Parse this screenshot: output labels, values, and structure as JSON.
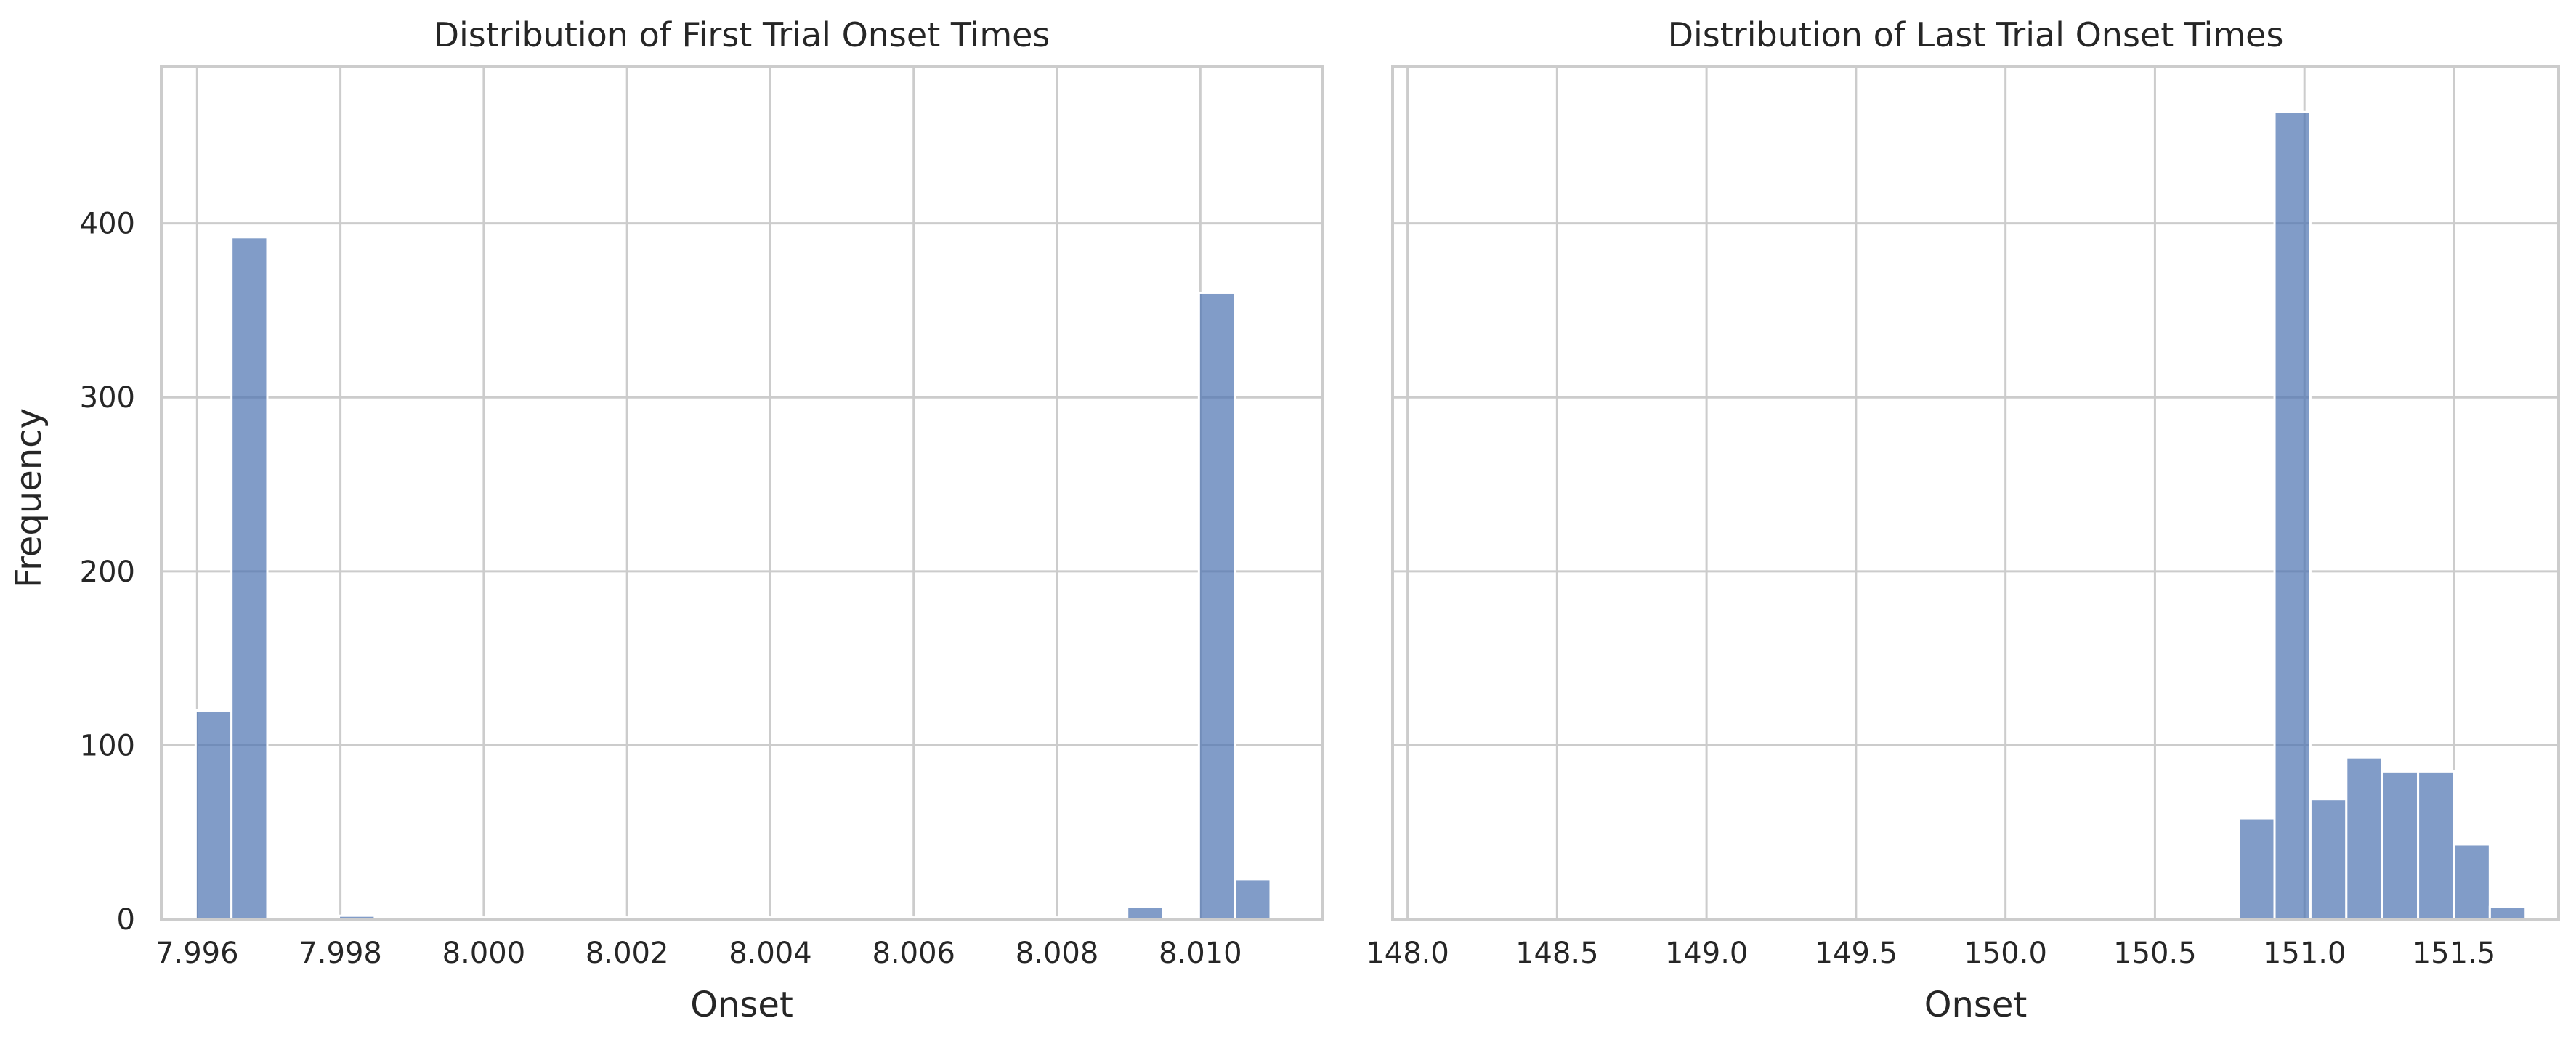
{
  "figure": {
    "ylabel": "Frequency"
  },
  "colors": {
    "bar": "#4c72b0",
    "grid": "#cccccc",
    "background": "#ffffff",
    "text": "#262626"
  },
  "chart_data": [
    {
      "type": "bar",
      "title": "Distribution of First Trial Onset Times",
      "xlabel": "Onset",
      "ylabel": "Frequency",
      "xlim": [
        7.9955,
        8.0117
      ],
      "ylim": [
        0,
        490
      ],
      "x_ticks": [
        7.996,
        7.998,
        8.0,
        8.002,
        8.004,
        8.006,
        8.008,
        8.01
      ],
      "x_tick_labels": [
        "7.996",
        "7.998",
        "8.000",
        "8.002",
        "8.004",
        "8.006",
        "8.008",
        "8.010"
      ],
      "y_ticks": [
        0,
        100,
        200,
        300,
        400
      ],
      "y_tick_labels": [
        "0",
        "100",
        "200",
        "300",
        "400"
      ],
      "grid": true,
      "bins": [
        {
          "x0": 7.99598,
          "x1": 7.99648,
          "value": 120
        },
        {
          "x0": 7.99648,
          "x1": 7.99698,
          "value": 392
        },
        {
          "x0": 7.99748,
          "x1": 7.99798,
          "value": 1
        },
        {
          "x0": 7.99798,
          "x1": 7.99848,
          "value": 2
        },
        {
          "x0": 7.99848,
          "x1": 7.99898,
          "value": 1
        },
        {
          "x0": 7.99898,
          "x1": 7.99948,
          "value": 1
        },
        {
          "x0": 7.99948,
          "x1": 7.99998,
          "value": 1
        },
        {
          "x0": 7.99998,
          "x1": 8.00048,
          "value": 1
        },
        {
          "x0": 8.00048,
          "x1": 8.00098,
          "value": 1
        },
        {
          "x0": 8.00098,
          "x1": 8.00148,
          "value": 1
        },
        {
          "x0": 8.00148,
          "x1": 8.00198,
          "value": 1
        },
        {
          "x0": 8.00198,
          "x1": 8.00248,
          "value": 1
        },
        {
          "x0": 8.00248,
          "x1": 8.00298,
          "value": 1
        },
        {
          "x0": 8.00298,
          "x1": 8.00348,
          "value": 1
        },
        {
          "x0": 8.00348,
          "x1": 8.00398,
          "value": 1
        },
        {
          "x0": 8.00398,
          "x1": 8.00448,
          "value": 1
        },
        {
          "x0": 8.00448,
          "x1": 8.00498,
          "value": 1
        },
        {
          "x0": 8.00498,
          "x1": 8.00548,
          "value": 1
        },
        {
          "x0": 8.00548,
          "x1": 8.00598,
          "value": 1
        },
        {
          "x0": 8.00598,
          "x1": 8.00648,
          "value": 1
        },
        {
          "x0": 8.00648,
          "x1": 8.00698,
          "value": 1
        },
        {
          "x0": 8.00698,
          "x1": 8.00748,
          "value": 1
        },
        {
          "x0": 8.00748,
          "x1": 8.00798,
          "value": 1
        },
        {
          "x0": 8.00798,
          "x1": 8.00848,
          "value": 1
        },
        {
          "x0": 8.00848,
          "x1": 8.00898,
          "value": 1
        },
        {
          "x0": 8.00898,
          "x1": 8.00948,
          "value": 7
        },
        {
          "x0": 8.00998,
          "x1": 8.01048,
          "value": 360
        },
        {
          "x0": 8.01048,
          "x1": 8.01098,
          "value": 23
        }
      ]
    },
    {
      "type": "bar",
      "title": "Distribution of Last Trial Onset Times",
      "xlabel": "Onset",
      "ylabel": "",
      "xlim": [
        147.95,
        151.85
      ],
      "ylim": [
        0,
        490
      ],
      "x_ticks": [
        148.0,
        148.5,
        149.0,
        149.5,
        150.0,
        150.5,
        151.0,
        151.5
      ],
      "x_tick_labels": [
        "148.0",
        "148.5",
        "149.0",
        "149.5",
        "150.0",
        "150.5",
        "151.0",
        "151.5"
      ],
      "y_ticks": [
        0,
        100,
        200,
        300,
        400
      ],
      "y_tick_labels": [
        "",
        "",
        "",
        "",
        ""
      ],
      "grid": true,
      "bins": [
        {
          "x0": 148.04,
          "x1": 148.16,
          "value": 1
        },
        {
          "x0": 148.16,
          "x1": 148.28,
          "value": 1
        },
        {
          "x0": 150.66,
          "x1": 150.78,
          "value": 1
        },
        {
          "x0": 150.78,
          "x1": 150.9,
          "value": 58
        },
        {
          "x0": 150.9,
          "x1": 151.02,
          "value": 464
        },
        {
          "x0": 151.02,
          "x1": 151.14,
          "value": 69
        },
        {
          "x0": 151.14,
          "x1": 151.26,
          "value": 93
        },
        {
          "x0": 151.26,
          "x1": 151.38,
          "value": 85
        },
        {
          "x0": 151.38,
          "x1": 151.5,
          "value": 85
        },
        {
          "x0": 151.5,
          "x1": 151.62,
          "value": 43
        },
        {
          "x0": 151.62,
          "x1": 151.74,
          "value": 7
        }
      ]
    }
  ]
}
